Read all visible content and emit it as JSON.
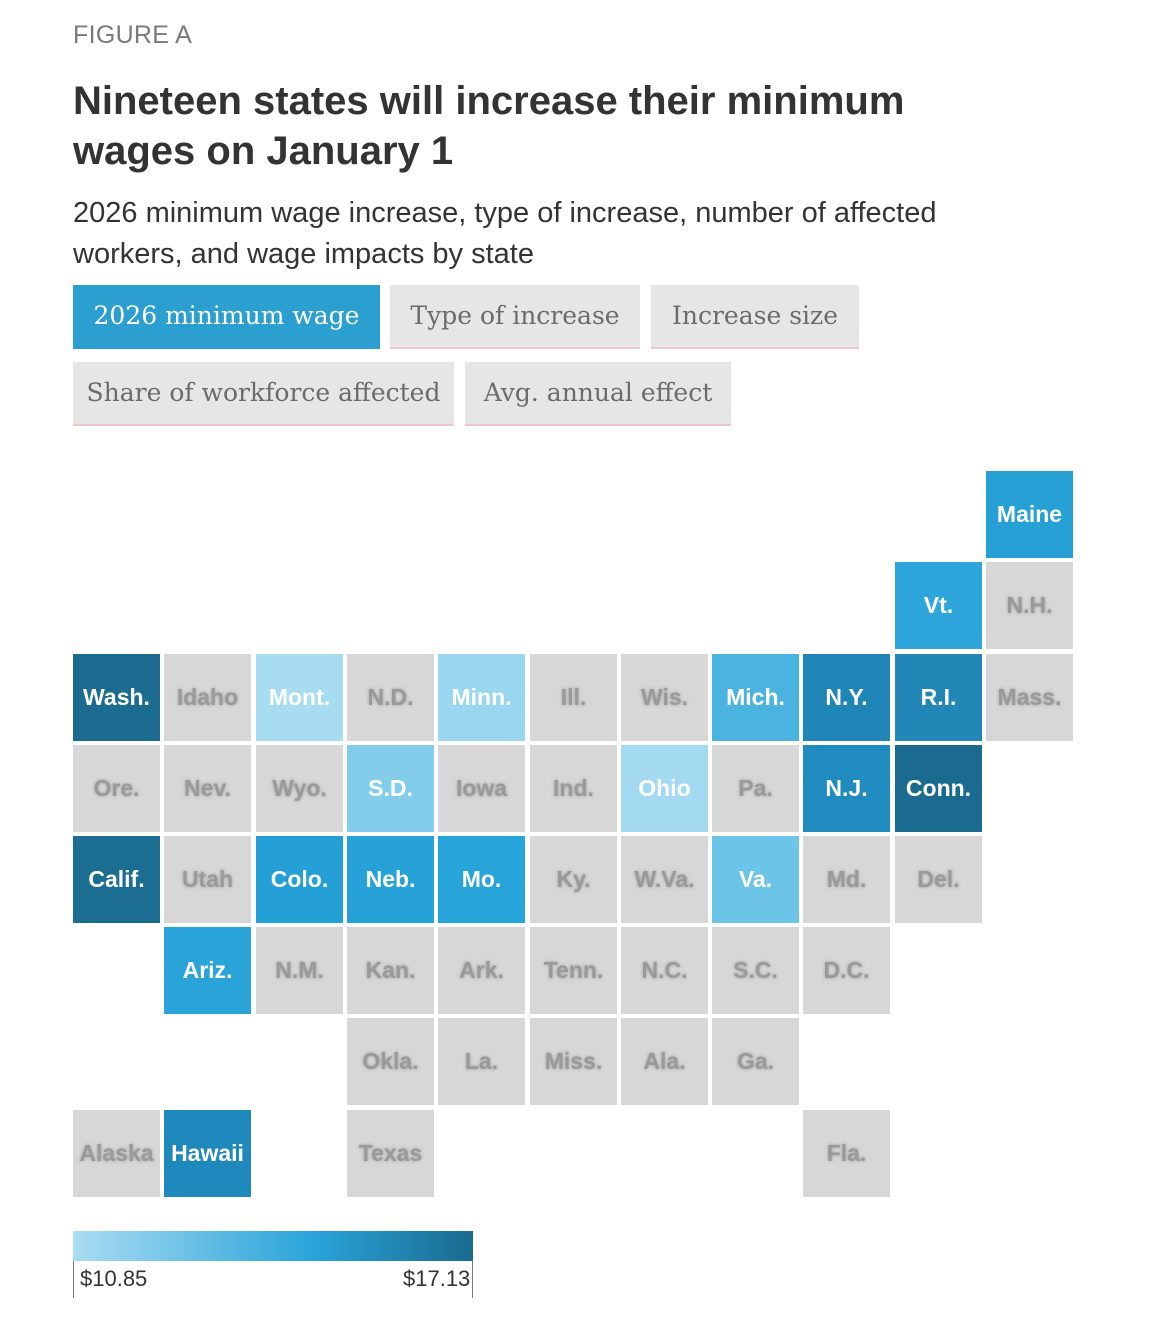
{
  "figure_label": "FIGURE A",
  "title": "Nineteen states will increase their minimum wages on January 1",
  "subtitle": "2026 minimum wage increase, type of increase, number of affected workers, and wage impacts by state",
  "tabs": [
    {
      "label": "2026 minimum wage",
      "active": true
    },
    {
      "label": "Type of increase",
      "active": false
    },
    {
      "label": "Increase size",
      "active": false
    },
    {
      "label": "Share of workforce affected",
      "active": false
    },
    {
      "label": "Avg. annual effect",
      "active": false
    }
  ],
  "colors": {
    "no_increase": "#d7d7d7",
    "scale_low": "#aadcf2",
    "scale_mid": "#29a3d9",
    "scale_high": "#1a6b8f"
  },
  "chart_data": {
    "type": "heatmap",
    "value_unit": "2026 minimum wage level (color intensity)",
    "legend": {
      "min_label": "$10.85",
      "max_label": "$17.13"
    },
    "states": [
      {
        "name": "Maine",
        "row": 0,
        "col": 10,
        "increase": true,
        "color": "#27a0d6"
      },
      {
        "name": "Vt.",
        "row": 1,
        "col": 9,
        "increase": true,
        "color": "#2ea6dc"
      },
      {
        "name": "N.H.",
        "row": 1,
        "col": 10,
        "increase": false
      },
      {
        "name": "Wash.",
        "row": 2,
        "col": 0,
        "increase": true,
        "color": "#1b6c90"
      },
      {
        "name": "Idaho",
        "row": 2,
        "col": 1,
        "increase": false
      },
      {
        "name": "Mont.",
        "row": 2,
        "col": 2,
        "increase": true,
        "color": "#a7dcf1"
      },
      {
        "name": "N.D.",
        "row": 2,
        "col": 3,
        "increase": false
      },
      {
        "name": "Minn.",
        "row": 2,
        "col": 4,
        "increase": true,
        "color": "#9ad6ef"
      },
      {
        "name": "Ill.",
        "row": 2,
        "col": 5,
        "increase": false
      },
      {
        "name": "Wis.",
        "row": 2,
        "col": 6,
        "increase": false
      },
      {
        "name": "Mich.",
        "row": 2,
        "col": 7,
        "increase": true,
        "color": "#4ab3e0"
      },
      {
        "name": "N.Y.",
        "row": 2,
        "col": 8,
        "increase": true,
        "color": "#1f84b6"
      },
      {
        "name": "R.I.",
        "row": 2,
        "col": 9,
        "increase": true,
        "color": "#2286b7"
      },
      {
        "name": "Mass.",
        "row": 2,
        "col": 10,
        "increase": false
      },
      {
        "name": "Ore.",
        "row": 3,
        "col": 0,
        "increase": false
      },
      {
        "name": "Nev.",
        "row": 3,
        "col": 1,
        "increase": false
      },
      {
        "name": "Wyo.",
        "row": 3,
        "col": 2,
        "increase": false
      },
      {
        "name": "S.D.",
        "row": 3,
        "col": 3,
        "increase": true,
        "color": "#83cdea"
      },
      {
        "name": "Iowa",
        "row": 3,
        "col": 4,
        "increase": false
      },
      {
        "name": "Ind.",
        "row": 3,
        "col": 5,
        "increase": false
      },
      {
        "name": "Ohio",
        "row": 3,
        "col": 6,
        "increase": true,
        "color": "#a3daf1"
      },
      {
        "name": "Pa.",
        "row": 3,
        "col": 7,
        "increase": false
      },
      {
        "name": "N.J.",
        "row": 3,
        "col": 8,
        "increase": true,
        "color": "#1f8bbe"
      },
      {
        "name": "Conn.",
        "row": 3,
        "col": 9,
        "increase": true,
        "color": "#1a6b8f"
      },
      {
        "name": "Calif.",
        "row": 4,
        "col": 0,
        "increase": true,
        "color": "#1b6d92"
      },
      {
        "name": "Utah",
        "row": 4,
        "col": 1,
        "increase": false
      },
      {
        "name": "Colo.",
        "row": 4,
        "col": 2,
        "increase": true,
        "color": "#24a0d6"
      },
      {
        "name": "Neb.",
        "row": 4,
        "col": 3,
        "increase": true,
        "color": "#27a2d8"
      },
      {
        "name": "Mo.",
        "row": 4,
        "col": 4,
        "increase": true,
        "color": "#27a4da"
      },
      {
        "name": "Ky.",
        "row": 4,
        "col": 5,
        "increase": false
      },
      {
        "name": "W.Va.",
        "row": 4,
        "col": 6,
        "increase": false
      },
      {
        "name": "Va.",
        "row": 4,
        "col": 7,
        "increase": true,
        "color": "#6cc4e8"
      },
      {
        "name": "Md.",
        "row": 4,
        "col": 8,
        "increase": false
      },
      {
        "name": "Del.",
        "row": 4,
        "col": 9,
        "increase": false
      },
      {
        "name": "Ariz.",
        "row": 5,
        "col": 1,
        "increase": true,
        "color": "#2aa3d9"
      },
      {
        "name": "N.M.",
        "row": 5,
        "col": 2,
        "increase": false
      },
      {
        "name": "Kan.",
        "row": 5,
        "col": 3,
        "increase": false
      },
      {
        "name": "Ark.",
        "row": 5,
        "col": 4,
        "increase": false
      },
      {
        "name": "Tenn.",
        "row": 5,
        "col": 5,
        "increase": false
      },
      {
        "name": "N.C.",
        "row": 5,
        "col": 6,
        "increase": false
      },
      {
        "name": "S.C.",
        "row": 5,
        "col": 7,
        "increase": false
      },
      {
        "name": "D.C.",
        "row": 5,
        "col": 8,
        "increase": false
      },
      {
        "name": "Okla.",
        "row": 6,
        "col": 3,
        "increase": false
      },
      {
        "name": "La.",
        "row": 6,
        "col": 4,
        "increase": false
      },
      {
        "name": "Miss.",
        "row": 6,
        "col": 5,
        "increase": false
      },
      {
        "name": "Ala.",
        "row": 6,
        "col": 6,
        "increase": false
      },
      {
        "name": "Ga.",
        "row": 6,
        "col": 7,
        "increase": false
      },
      {
        "name": "Alaska",
        "row": 7,
        "col": 0,
        "increase": false
      },
      {
        "name": "Hawaii",
        "row": 7,
        "col": 1,
        "increase": true,
        "color": "#1f89bd"
      },
      {
        "name": "Texas",
        "row": 7,
        "col": 3,
        "increase": false
      },
      {
        "name": "Fla.",
        "row": 7,
        "col": 8,
        "increase": false
      }
    ]
  }
}
